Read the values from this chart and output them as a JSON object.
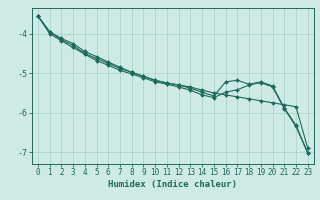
{
  "xlabel": "Humidex (Indice chaleur)",
  "background_color": "#ceeae5",
  "grid_color": "#aed4ce",
  "line_color": "#1a6b5a",
  "x_values": [
    0,
    1,
    2,
    3,
    4,
    5,
    6,
    7,
    8,
    9,
    10,
    11,
    12,
    13,
    14,
    15,
    16,
    17,
    18,
    19,
    20,
    21,
    22,
    23
  ],
  "line1": [
    -3.55,
    -3.95,
    -4.12,
    -4.25,
    -4.45,
    -4.58,
    -4.72,
    -4.85,
    -4.98,
    -5.08,
    -5.18,
    -5.25,
    -5.3,
    -5.35,
    -5.43,
    -5.5,
    -5.55,
    -5.6,
    -5.65,
    -5.7,
    -5.75,
    -5.8,
    -5.85,
    -6.9
  ],
  "line2": [
    -3.55,
    -3.95,
    -4.15,
    -4.3,
    -4.5,
    -4.63,
    -4.75,
    -4.88,
    -4.98,
    -5.08,
    -5.18,
    -5.25,
    -5.3,
    -5.38,
    -5.48,
    -5.58,
    -5.22,
    -5.18,
    -5.28,
    -5.22,
    -5.32,
    -5.88,
    -6.32,
    -7.02
  ],
  "line3": [
    -3.55,
    -4.0,
    -4.18,
    -4.35,
    -4.52,
    -4.68,
    -4.8,
    -4.93,
    -5.02,
    -5.12,
    -5.22,
    -5.28,
    -5.35,
    -5.43,
    -5.55,
    -5.62,
    -5.48,
    -5.42,
    -5.3,
    -5.24,
    -5.35,
    -5.9,
    -6.35,
    -7.02
  ],
  "ylim": [
    -7.3,
    -3.35
  ],
  "xlim": [
    -0.5,
    23.5
  ],
  "yticks": [
    -7,
    -6,
    -5,
    -4
  ],
  "xticks": [
    0,
    1,
    2,
    3,
    4,
    5,
    6,
    7,
    8,
    9,
    10,
    11,
    12,
    13,
    14,
    15,
    16,
    17,
    18,
    19,
    20,
    21,
    22,
    23
  ],
  "marker": "D",
  "markersize": 2.0,
  "linewidth": 0.8,
  "tick_fontsize": 5.5,
  "xlabel_fontsize": 6.5
}
